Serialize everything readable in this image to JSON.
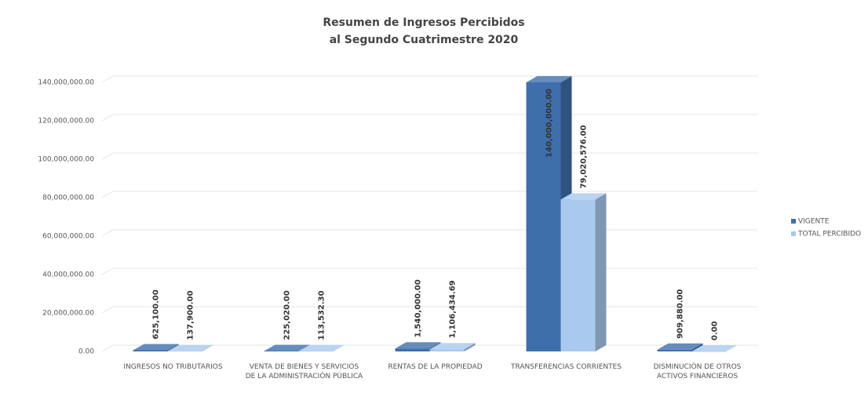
{
  "chart_data": {
    "type": "bar3d",
    "title": "Resumen de Ingresos Percibidos\nal Segundo Cuatrimestre 2020",
    "categories": [
      "INGRESOS NO TRIBUTARIOS",
      "VENTA DE BIENES Y SERVICIOS DE LA ADMINISTRACIÓN PÚBLICA",
      "RENTAS DE LA PROPIEDAD",
      "TRANSFERENCIAS CORRIENTES",
      "DISMINUCIÓN DE OTROS ACTIVOS FINANCIEROS"
    ],
    "series": [
      {
        "name": "VIGENTE",
        "color": "#3f6fab",
        "values": [
          625100,
          225020,
          1540000,
          140000000,
          909880
        ],
        "value_labels": [
          "625,100.00",
          "225,020.00",
          "1,540,000.00",
          "140,000,000.00",
          "909,880.00"
        ]
      },
      {
        "name": "TOTAL PERCIBIDO",
        "color": "#a9c9ef",
        "values": [
          137900,
          113532.3,
          1106434.69,
          79020576,
          0
        ],
        "value_labels": [
          "137,900.00",
          "113,532.30",
          "1,106,434.69",
          "79,020,576.00",
          "0.00"
        ]
      }
    ],
    "ylim": [
      0,
      140000000
    ],
    "yticks": [
      {
        "value": 0,
        "label": "0.00"
      },
      {
        "value": 20000000,
        "label": "20,000,000.00"
      },
      {
        "value": 40000000,
        "label": "40,000,000.00"
      },
      {
        "value": 60000000,
        "label": "60,000,000.00"
      },
      {
        "value": 80000000,
        "label": "80,000,000.00"
      },
      {
        "value": 100000000,
        "label": "100,000,000.00"
      },
      {
        "value": 120000000,
        "label": "120,000,000.00"
      },
      {
        "value": 140000000,
        "label": "140,000,000.00"
      }
    ],
    "grid": true,
    "legend": "right"
  }
}
